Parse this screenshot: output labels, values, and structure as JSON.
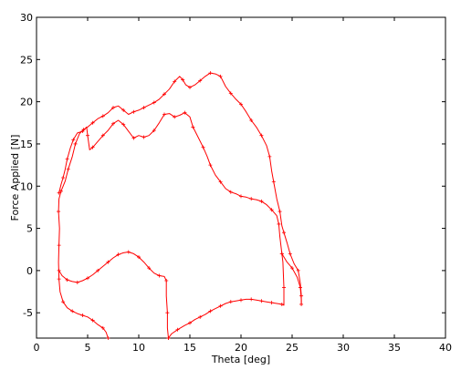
{
  "chart_data": {
    "type": "line",
    "title": "",
    "xlabel": "Theta [deg]",
    "ylabel": "Force Applied [N]",
    "xlim": [
      0,
      40
    ],
    "ylim": [
      -8,
      30
    ],
    "xticks": [
      0,
      5,
      10,
      15,
      20,
      25,
      30,
      35,
      40
    ],
    "yticks": [
      -5,
      0,
      5,
      10,
      15,
      20,
      25,
      30
    ],
    "grid": false,
    "legend": "none",
    "color": "#ff0000",
    "series": [
      {
        "points": [
          [
            7,
            -8
          ],
          [
            6.8,
            -7.3
          ],
          [
            6.5,
            -6.8
          ],
          [
            6,
            -6.4
          ],
          [
            5.5,
            -5.9
          ],
          [
            5,
            -5.5
          ],
          [
            4.5,
            -5.3
          ],
          [
            4,
            -5.1
          ],
          [
            3.5,
            -4.8
          ],
          [
            3,
            -4.4
          ],
          [
            2.6,
            -3.7
          ],
          [
            2.3,
            -2.5
          ],
          [
            2.2,
            -1
          ],
          [
            2.15,
            1
          ],
          [
            2.2,
            3
          ],
          [
            2.25,
            5
          ],
          [
            2.15,
            7
          ],
          [
            2.2,
            8.5
          ],
          [
            2.4,
            9.4
          ],
          [
            2.8,
            10.6
          ],
          [
            3.1,
            12
          ],
          [
            3.5,
            13.5
          ],
          [
            3.8,
            15
          ],
          [
            4.2,
            16.2
          ],
          [
            4.6,
            16.7
          ],
          [
            5,
            17
          ],
          [
            5.5,
            17.5
          ],
          [
            6,
            18
          ],
          [
            6.5,
            18.3
          ],
          [
            7,
            18.7
          ],
          [
            7.5,
            19.3
          ],
          [
            8,
            19.5
          ],
          [
            8.5,
            19
          ],
          [
            9,
            18.5
          ],
          [
            9.5,
            18.8
          ],
          [
            10,
            19
          ],
          [
            10.5,
            19.3
          ],
          [
            11,
            19.6
          ],
          [
            11.5,
            19.9
          ],
          [
            12,
            20.3
          ],
          [
            12.5,
            20.9
          ],
          [
            13,
            21.5
          ],
          [
            13.5,
            22.4
          ],
          [
            14,
            23
          ],
          [
            14.3,
            22.6
          ],
          [
            14.6,
            22
          ],
          [
            15,
            21.7
          ],
          [
            15.5,
            22
          ],
          [
            16,
            22.5
          ],
          [
            16.5,
            23
          ],
          [
            17,
            23.4
          ],
          [
            17.5,
            23.3
          ],
          [
            18,
            23
          ],
          [
            18.5,
            21.8
          ],
          [
            19,
            21
          ],
          [
            19.5,
            20.3
          ],
          [
            20,
            19.7
          ],
          [
            20.5,
            18.8
          ],
          [
            21,
            17.8
          ],
          [
            21.5,
            17
          ],
          [
            22,
            16
          ],
          [
            22.5,
            14.8
          ],
          [
            22.8,
            13.5
          ],
          [
            23,
            11.8
          ],
          [
            23.2,
            10.5
          ],
          [
            23.5,
            8.5
          ],
          [
            23.8,
            7
          ],
          [
            24,
            5.3
          ],
          [
            24.2,
            4.5
          ],
          [
            24.5,
            3.3
          ],
          [
            24.8,
            2
          ],
          [
            25.2,
            0.8
          ],
          [
            25.6,
            0
          ],
          [
            25.8,
            -1.5
          ],
          [
            25.9,
            -3
          ],
          [
            25.9,
            -4
          ]
        ]
      },
      {
        "points": [
          [
            25.9,
            -4
          ],
          [
            25.9,
            -3.5
          ],
          [
            25.8,
            -2
          ],
          [
            25.5,
            -0.8
          ],
          [
            25,
            0.3
          ],
          [
            24.5,
            1
          ],
          [
            24,
            2
          ],
          [
            23.8,
            4
          ],
          [
            23.7,
            5.5
          ],
          [
            23.5,
            6.5
          ],
          [
            23,
            7.2
          ],
          [
            22.5,
            7.8
          ],
          [
            22,
            8.2
          ],
          [
            21.5,
            8.4
          ],
          [
            21,
            8.5
          ],
          [
            20.5,
            8.7
          ],
          [
            20,
            8.8
          ],
          [
            19.5,
            9.1
          ],
          [
            19,
            9.3
          ],
          [
            18.5,
            9.7
          ],
          [
            18,
            10.5
          ],
          [
            17.5,
            11.3
          ],
          [
            17,
            12.5
          ],
          [
            16.7,
            13.5
          ],
          [
            16.3,
            14.6
          ],
          [
            15.8,
            15.8
          ],
          [
            15.3,
            17
          ],
          [
            15,
            18.2
          ],
          [
            14.5,
            18.7
          ],
          [
            14,
            18.4
          ],
          [
            13.5,
            18.2
          ],
          [
            13,
            18.6
          ],
          [
            12.5,
            18.5
          ],
          [
            12,
            17.5
          ],
          [
            11.5,
            16.6
          ],
          [
            11,
            16
          ],
          [
            10.5,
            15.8
          ],
          [
            10,
            16
          ],
          [
            9.5,
            15.7
          ],
          [
            9,
            16.5
          ],
          [
            8.5,
            17.3
          ],
          [
            8,
            17.8
          ],
          [
            7.5,
            17.4
          ],
          [
            7,
            16.6
          ],
          [
            6.5,
            16
          ],
          [
            6,
            15.3
          ],
          [
            5.5,
            14.6
          ],
          [
            5.2,
            14.3
          ],
          [
            5,
            16
          ],
          [
            4.9,
            17
          ],
          [
            4.5,
            16.5
          ],
          [
            4,
            16.3
          ],
          [
            3.6,
            15.5
          ],
          [
            3.3,
            14.5
          ],
          [
            3,
            13.2
          ],
          [
            2.8,
            12
          ],
          [
            2.6,
            11
          ],
          [
            2.4,
            10.2
          ],
          [
            2.2,
            9.2
          ]
        ]
      },
      {
        "points": [
          [
            2.2,
            0
          ],
          [
            2.5,
            -0.6
          ],
          [
            3,
            -1.1
          ],
          [
            3.5,
            -1.3
          ],
          [
            4,
            -1.4
          ],
          [
            4.5,
            -1.2
          ],
          [
            5,
            -0.9
          ],
          [
            5.5,
            -0.5
          ],
          [
            6,
            0
          ],
          [
            6.5,
            0.5
          ],
          [
            7,
            1
          ],
          [
            7.5,
            1.5
          ],
          [
            8,
            1.9
          ],
          [
            8.5,
            2.1
          ],
          [
            9,
            2.2
          ],
          [
            9.5,
            2
          ],
          [
            10,
            1.6
          ],
          [
            10.5,
            1
          ],
          [
            11,
            0.3
          ],
          [
            11.5,
            -0.3
          ],
          [
            12,
            -0.6
          ],
          [
            12.5,
            -0.7
          ],
          [
            12.7,
            -1.2
          ],
          [
            12.7,
            -3
          ],
          [
            12.8,
            -5
          ],
          [
            12.8,
            -6.8
          ],
          [
            12.9,
            -8
          ]
        ]
      },
      {
        "points": [
          [
            12.9,
            -8
          ],
          [
            13.2,
            -7.5
          ],
          [
            13.8,
            -7
          ],
          [
            14.5,
            -6.5
          ],
          [
            15,
            -6.2
          ],
          [
            15.5,
            -5.8
          ],
          [
            16,
            -5.5
          ],
          [
            16.5,
            -5.2
          ],
          [
            17,
            -4.8
          ],
          [
            17.5,
            -4.5
          ],
          [
            18,
            -4.2
          ],
          [
            18.5,
            -3.9
          ],
          [
            19,
            -3.7
          ],
          [
            19.5,
            -3.6
          ],
          [
            20,
            -3.5
          ],
          [
            20.5,
            -3.4
          ],
          [
            21,
            -3.4
          ],
          [
            21.5,
            -3.5
          ],
          [
            22,
            -3.6
          ],
          [
            22.5,
            -3.7
          ],
          [
            23,
            -3.8
          ],
          [
            23.5,
            -3.9
          ],
          [
            24,
            -4
          ],
          [
            24.2,
            -4.1
          ],
          [
            24.2,
            -2
          ],
          [
            24.1,
            1
          ],
          [
            24,
            2
          ]
        ]
      }
    ]
  }
}
